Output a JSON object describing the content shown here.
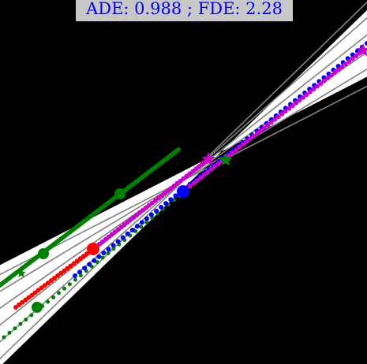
{
  "chart_data": {
    "type": "scatter",
    "title": "ADE: 0.988 ; FDE: 2.28",
    "background": "#000000",
    "title_box_color": "#c8c8c8",
    "title_text_color": "#0000ff",
    "road": {
      "fill_color": "#ffffff",
      "lane_line_color": "#808080",
      "lane_lines": [
        {
          "x": [
            -7,
            468
          ],
          "y": [
            462,
            0
          ]
        },
        {
          "x": [
            -7,
            468
          ],
          "y": [
            440,
            20
          ]
        },
        {
          "x": [
            -7,
            468
          ],
          "y": [
            418,
            42
          ]
        },
        {
          "x": [
            -7,
            468
          ],
          "y": [
            396,
            64
          ]
        },
        {
          "x": [
            -7,
            468
          ],
          "y": [
            374,
            86
          ]
        },
        {
          "x": [
            -7,
            468
          ],
          "y": [
            352,
            108
          ]
        }
      ]
    },
    "series": [
      {
        "role": "neighbor-history",
        "color": "#008000",
        "marker": "dot",
        "size": 3,
        "x0": 0,
        "y0": 362,
        "x1": 226,
        "y1": 190,
        "n": 90
      },
      {
        "role": "neighbor-history",
        "color": "#008000",
        "marker": "dot",
        "size": 2.5,
        "x0": 5,
        "y0": 428,
        "x1": 290,
        "y1": 198,
        "n": 42
      },
      {
        "role": "observed-history",
        "color": "#ff0000",
        "marker": "dot",
        "size": 3,
        "x0": 20,
        "y0": 390,
        "x1": 118,
        "y1": 316,
        "n": 25
      },
      {
        "role": "ground-truth-future",
        "color": "#0000ff",
        "marker": "dot",
        "size": 3,
        "x0": 95,
        "y0": 350,
        "x1": 465,
        "y1": 55,
        "n": 62
      },
      {
        "role": "predicted-future",
        "color": "#cc00cc",
        "marker": "dot",
        "size": 3,
        "x0": 118,
        "y0": 316,
        "x1": 264,
        "y1": 202,
        "n": 38
      },
      {
        "role": "predicted-future",
        "color": "#cc00cc",
        "marker": "dot",
        "size": 3,
        "x0": 232,
        "y0": 243,
        "x1": 460,
        "y1": 64,
        "n": 52
      }
    ],
    "start_markers": [
      {
        "x": 47,
        "y": 390,
        "color": "#008000",
        "r": 7
      },
      {
        "x": 55,
        "y": 322,
        "color": "#008000",
        "r": 7
      },
      {
        "x": 152,
        "y": 246,
        "color": "#008000",
        "r": 7
      },
      {
        "x": 118,
        "y": 316,
        "color": "#ff0000",
        "r": 8
      },
      {
        "x": 232,
        "y": 243,
        "color": "#0000ff",
        "r": 8
      }
    ],
    "end_markers": [
      {
        "x": 264,
        "y": 202,
        "color": "#cc00cc",
        "size": 9
      },
      {
        "x": 286,
        "y": 203,
        "color": "#008000",
        "size": 9
      },
      {
        "x": 460,
        "y": 64,
        "color": "#cc00cc",
        "size": 9
      },
      {
        "x": 27,
        "y": 347,
        "color": "#008000",
        "size": 6
      }
    ]
  }
}
